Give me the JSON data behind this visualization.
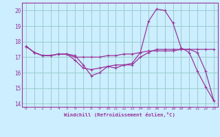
{
  "xlabel": "Windchill (Refroidissement éolien,°C)",
  "background_color": "#cceeff",
  "line_color": "#993399",
  "grid_color": "#99cccc",
  "xlim": [
    -0.5,
    23.5
  ],
  "ylim": [
    13.8,
    20.5
  ],
  "yticks": [
    14,
    15,
    16,
    17,
    18,
    19,
    20
  ],
  "xticks": [
    0,
    1,
    2,
    3,
    4,
    5,
    6,
    7,
    8,
    9,
    10,
    11,
    12,
    13,
    14,
    15,
    16,
    17,
    18,
    19,
    20,
    21,
    22,
    23
  ],
  "line1_x": [
    0,
    1,
    2,
    3,
    4,
    5,
    6,
    7,
    8,
    9,
    10,
    11,
    12,
    13,
    14,
    15,
    16,
    17,
    18,
    19,
    20,
    21,
    22,
    23
  ],
  "line1_y": [
    17.7,
    17.3,
    17.1,
    17.1,
    17.2,
    17.2,
    17.1,
    16.5,
    15.8,
    16.0,
    16.4,
    16.3,
    16.5,
    16.6,
    17.3,
    19.3,
    20.1,
    20.0,
    19.2,
    17.6,
    17.3,
    16.1,
    15.1,
    14.2
  ],
  "line2_x": [
    0,
    1,
    2,
    3,
    4,
    5,
    6,
    7,
    8,
    9,
    10,
    11,
    12,
    13,
    14,
    15,
    16,
    17,
    18,
    19,
    20,
    21,
    22,
    23
  ],
  "line2_y": [
    17.7,
    17.3,
    17.1,
    17.1,
    17.2,
    17.2,
    17.0,
    17.0,
    17.0,
    17.0,
    17.1,
    17.1,
    17.2,
    17.2,
    17.3,
    17.4,
    17.4,
    17.4,
    17.4,
    17.5,
    17.5,
    17.5,
    17.5,
    17.5
  ],
  "line3_x": [
    0,
    1,
    2,
    3,
    4,
    5,
    6,
    7,
    8,
    9,
    10,
    11,
    12,
    13,
    14,
    15,
    16,
    17,
    18,
    19,
    20,
    21,
    22,
    23
  ],
  "line3_y": [
    17.7,
    17.3,
    17.1,
    17.1,
    17.2,
    17.2,
    16.8,
    16.3,
    16.2,
    16.3,
    16.4,
    16.5,
    16.5,
    16.5,
    17.0,
    17.3,
    17.5,
    17.5,
    17.5,
    17.5,
    17.5,
    17.3,
    16.1,
    14.2
  ]
}
